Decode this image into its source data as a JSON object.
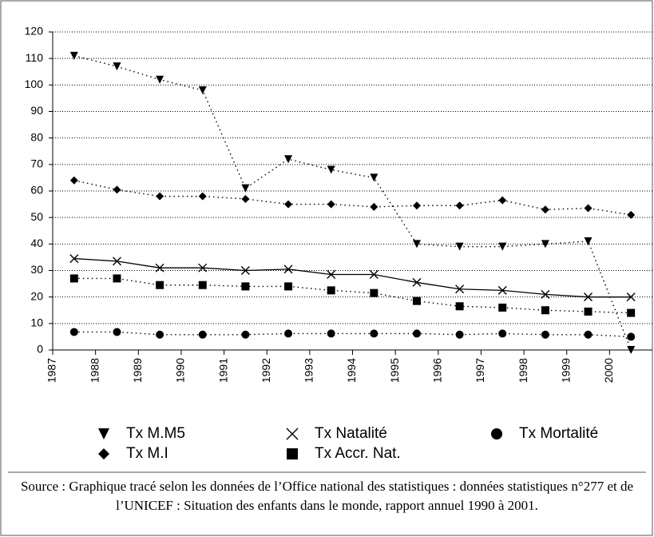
{
  "chart_data": {
    "type": "line",
    "x": [
      1987.5,
      1988.5,
      1989.5,
      1990.5,
      1991.5,
      1992.5,
      1993.5,
      1994.5,
      1995.5,
      1996.5,
      1997.5,
      1998.5,
      1999.5,
      2000.5
    ],
    "xlim": [
      1987,
      2001
    ],
    "xticks": [
      1987,
      1988,
      1989,
      1990,
      1991,
      1992,
      1993,
      1994,
      1995,
      1996,
      1997,
      1998,
      1999,
      2000
    ],
    "ylim": [
      0,
      120
    ],
    "yticks": [
      0,
      10,
      20,
      30,
      40,
      50,
      60,
      70,
      80,
      90,
      100,
      110,
      120
    ],
    "grid": true,
    "series": [
      {
        "name": "Tx M.M5",
        "color": "#000000",
        "marker": "triangle-down",
        "dash": "dotted",
        "values": [
          111,
          107,
          102,
          98,
          61,
          72,
          68,
          65,
          40,
          39,
          39,
          40,
          41,
          0
        ]
      },
      {
        "name": "Tx Natalité",
        "color": "#000000",
        "marker": "x",
        "dash": "solid",
        "values": [
          34.5,
          33.5,
          31,
          31,
          30,
          30.5,
          28.5,
          28.5,
          25.5,
          23,
          22.5,
          21,
          20,
          20
        ]
      },
      {
        "name": "Tx Mortalité",
        "color": "#000000",
        "marker": "circle",
        "dash": "dotted",
        "values": [
          6.8,
          6.8,
          5.8,
          5.8,
          5.8,
          6.2,
          6.2,
          6.2,
          6.2,
          5.8,
          6.2,
          5.8,
          5.8,
          5
        ]
      },
      {
        "name": "Tx M.I",
        "color": "#000000",
        "marker": "diamond",
        "dash": "dotted",
        "values": [
          64,
          60.5,
          58,
          58,
          57,
          55,
          55,
          54,
          54.5,
          54.5,
          56.5,
          53,
          53.5,
          51
        ]
      },
      {
        "name": "Tx Accr. Nat.",
        "color": "#000000",
        "marker": "square",
        "dash": "dotted",
        "values": [
          27,
          27,
          24.5,
          24.5,
          24,
          24,
          22.5,
          21.5,
          18.5,
          16.5,
          16,
          15,
          14.5,
          14
        ]
      }
    ],
    "source": "Source : Graphique tracé selon les données de l’Office national des statistiques : données statistiques n°277 et de l’UNICEF : Situation des enfants dans le monde, rapport annuel 1990 à 2001."
  }
}
